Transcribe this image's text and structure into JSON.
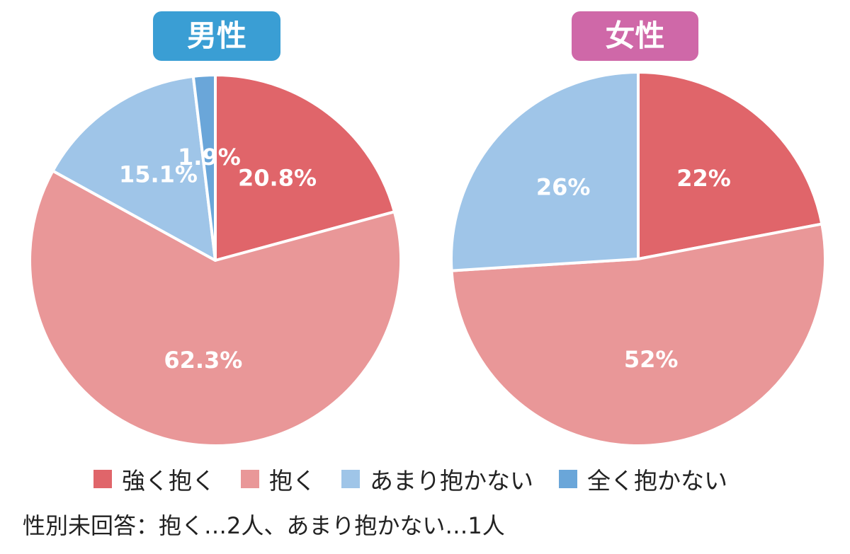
{
  "chart_data": [
    {
      "type": "pie",
      "title": "男性",
      "categories": [
        "強く抱く",
        "抱く",
        "あまり抱かない",
        "全く抱かない"
      ],
      "values": [
        20.8,
        62.3,
        15.1,
        1.9
      ],
      "labels": [
        "20.8%",
        "62.3%",
        "15.1%",
        "1.9%"
      ],
      "title_color": "#3a9ed4"
    },
    {
      "type": "pie",
      "title": "女性",
      "categories": [
        "強く抱く",
        "抱く",
        "あまり抱かない"
      ],
      "values": [
        22,
        52,
        26
      ],
      "labels": [
        "22%",
        "52%",
        "26%"
      ],
      "title_color": "#cf68a8"
    }
  ],
  "legend": [
    {
      "label": "強く抱く",
      "color": "#e0656a"
    },
    {
      "label": "抱く",
      "color": "#e99798"
    },
    {
      "label": "あまり抱かない",
      "color": "#9fc5e8"
    },
    {
      "label": "全く抱かない",
      "color": "#6aa6d9"
    }
  ],
  "footnote": "性別未回答：抱く…2人、あまり抱かない…1人"
}
